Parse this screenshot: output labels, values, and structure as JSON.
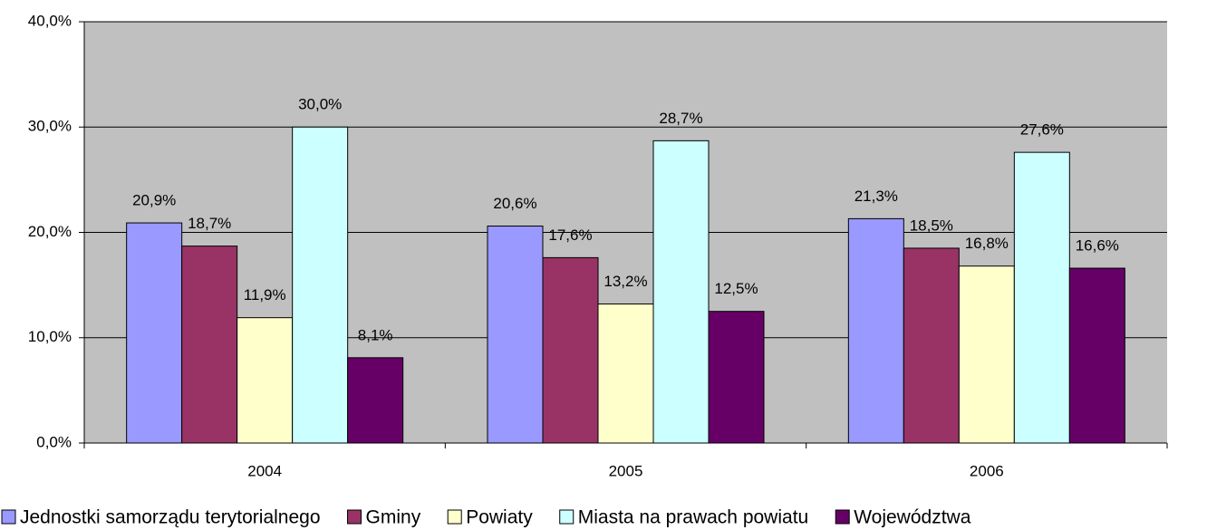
{
  "chart_data": {
    "type": "bar",
    "categories": [
      "2004",
      "2005",
      "2006"
    ],
    "series": [
      {
        "name": "Jednostki samorządu terytorialnego",
        "color": "#9999ff",
        "values": [
          20.9,
          20.6,
          21.3
        ],
        "value_labels": [
          "20,9%",
          "20,6%",
          "21,3%"
        ]
      },
      {
        "name": "Gminy",
        "color": "#993366",
        "values": [
          18.7,
          17.6,
          18.5
        ],
        "value_labels": [
          "18,7%",
          "17,6%",
          "18,5%"
        ]
      },
      {
        "name": "Powiaty",
        "color": "#ffffcc",
        "values": [
          11.9,
          13.2,
          16.8
        ],
        "value_labels": [
          "11,9%",
          "13,2%",
          "16,8%"
        ]
      },
      {
        "name": "Miasta na prawach powiatu",
        "color": "#ccffff",
        "values": [
          30.0,
          28.7,
          27.6
        ],
        "value_labels": [
          "30,0%",
          "28,7%",
          "27,6%"
        ]
      },
      {
        "name": "Województwa",
        "color": "#660066",
        "values": [
          8.1,
          12.5,
          16.6
        ],
        "value_labels": [
          "8,1%",
          "12,5%",
          "16,6%"
        ]
      }
    ],
    "ylim": [
      0,
      40
    ],
    "yticks": [
      {
        "value": 0,
        "label": "0,0%"
      },
      {
        "value": 10,
        "label": "10,0%"
      },
      {
        "value": 20,
        "label": "20,0%"
      },
      {
        "value": 30,
        "label": "30,0%"
      },
      {
        "value": 40,
        "label": "40,0%"
      }
    ],
    "grid": true,
    "plot_background": "#c0c0c0",
    "legend": "bottom"
  }
}
